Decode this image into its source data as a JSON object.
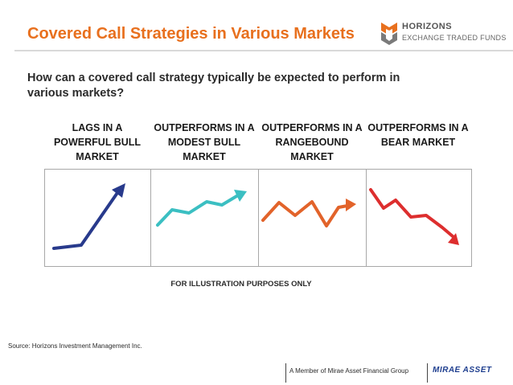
{
  "title": "Covered Call Strategies in Various Markets",
  "logo": {
    "name": "HORIZONS",
    "subtitle": "EXCHANGE TRADED FUNDS"
  },
  "subtitle": "How can a covered call strategy typically be expected to perform in various markets?",
  "scenarios": [
    {
      "heading": "LAGS IN A POWERFUL BULL MARKET",
      "color": "#283a8c"
    },
    {
      "heading": "OUTPERFORMS IN A MODEST BULL MARKET",
      "color": "#3bbfc2"
    },
    {
      "heading": "OUTPERFORMS IN A RANGEBOUND MARKET",
      "color": "#e2632a"
    },
    {
      "heading": "OUTPERFORMS IN A BEAR MARKET",
      "color": "#dd2e2e"
    }
  ],
  "note": "FOR ILLUSTRATION PURPOSES ONLY",
  "source": "Source:   Horizons Investment Management Inc.",
  "footer": {
    "member": "A Member of Mirae Asset Financial Group",
    "brand": "MIRAE ASSET"
  },
  "colors": {
    "title": "#e8701e",
    "logo_orange": "#e8701e",
    "logo_grey": "#7a7a7a"
  }
}
